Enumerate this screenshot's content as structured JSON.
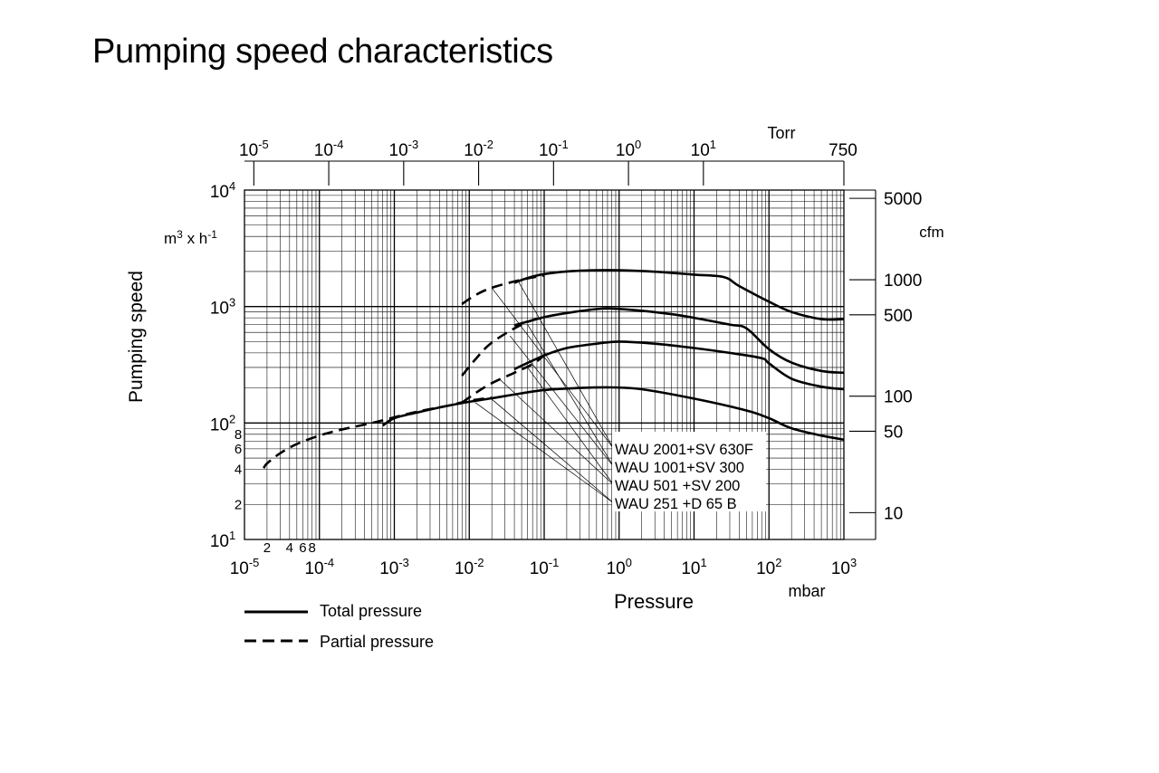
{
  "page": {
    "title": "Pumping speed characteristics"
  },
  "chart_data": {
    "type": "line",
    "title": "",
    "xlabel": "Pressure",
    "xunit": "mbar",
    "x_scale": "log",
    "xlim": [
      1e-05,
      1000
    ],
    "x_ticks": [
      "10-5",
      "10-4",
      "10-3",
      "10-2",
      "10-1",
      "100",
      "101",
      "102",
      "103"
    ],
    "x_minor_labels": [
      "2",
      "4",
      "6",
      "8"
    ],
    "ylabel": "Pumping speed",
    "yunit": "m3 x h-1",
    "y_scale": "log",
    "ylim": [
      10,
      10000
    ],
    "y_ticks": [
      "101",
      "102",
      "103",
      "104"
    ],
    "y_minor_labels": [
      "2",
      "4",
      "6",
      "8"
    ],
    "top_axis": {
      "label": "Torr",
      "ticks": [
        "10-5",
        "10-4",
        "10-3",
        "10-2",
        "10-1",
        "100",
        "101",
        "750"
      ]
    },
    "right_axis": {
      "label": "cfm",
      "ticks": [
        "5000",
        "1000",
        "500",
        "100",
        "50",
        "10"
      ]
    },
    "grid": true,
    "legend": {
      "position": "bottom-left",
      "entries": [
        {
          "label": "Total pressure",
          "style": "solid"
        },
        {
          "label": "Partial pressure",
          "style": "dashed"
        }
      ]
    },
    "annotations": [
      "WAU 2001+SV 630F",
      "WAU 1001+SV 300",
      "WAU 501  +SV 200",
      "WAU 251  +D 65 B"
    ],
    "series": [
      {
        "name": "WAU 2001+SV 630F",
        "style": "solid",
        "points": [
          [
            0.04,
            1600
          ],
          [
            0.06,
            1760
          ],
          [
            0.1,
            1900
          ],
          [
            0.2,
            2000
          ],
          [
            0.5,
            2050
          ],
          [
            1,
            2050
          ],
          [
            3,
            1990
          ],
          [
            10,
            1880
          ],
          [
            25,
            1790
          ],
          [
            40,
            1500
          ],
          [
            100,
            1100
          ],
          [
            200,
            900
          ],
          [
            500,
            780
          ],
          [
            1000,
            780
          ]
        ]
      },
      {
        "name": "WAU 2001+SV 630F",
        "style": "dashed",
        "points": [
          [
            0.008,
            1050
          ],
          [
            0.012,
            1250
          ],
          [
            0.02,
            1450
          ],
          [
            0.05,
            1700
          ],
          [
            0.1,
            1850
          ]
        ]
      },
      {
        "name": "WAU 1001+SV 300",
        "style": "solid",
        "points": [
          [
            0.04,
            690
          ],
          [
            0.1,
            810
          ],
          [
            0.2,
            880
          ],
          [
            0.5,
            950
          ],
          [
            0.8,
            960
          ],
          [
            2,
            920
          ],
          [
            5,
            860
          ],
          [
            10,
            800
          ],
          [
            30,
            700
          ],
          [
            50,
            650
          ],
          [
            100,
            430
          ],
          [
            200,
            330
          ],
          [
            500,
            280
          ],
          [
            1000,
            270
          ]
        ]
      },
      {
        "name": "WAU 1001+SV 300",
        "style": "dashed",
        "points": [
          [
            0.008,
            255
          ],
          [
            0.012,
            350
          ],
          [
            0.02,
            490
          ],
          [
            0.05,
            700
          ],
          [
            0.1,
            820
          ]
        ]
      },
      {
        "name": "WAU 501  +SV 200",
        "style": "solid",
        "points": [
          [
            0.04,
            290
          ],
          [
            0.1,
            380
          ],
          [
            0.2,
            440
          ],
          [
            0.5,
            480
          ],
          [
            1,
            500
          ],
          [
            3,
            480
          ],
          [
            10,
            440
          ],
          [
            30,
            400
          ],
          [
            80,
            360
          ],
          [
            100,
            325
          ],
          [
            200,
            240
          ],
          [
            500,
            205
          ],
          [
            1000,
            195
          ]
        ]
      },
      {
        "name": "WAU 501  +SV 200",
        "style": "dashed",
        "points": [
          [
            0.008,
            150
          ],
          [
            0.012,
            180
          ],
          [
            0.02,
            220
          ],
          [
            0.04,
            270
          ],
          [
            0.07,
            320
          ],
          [
            0.1,
            380
          ]
        ]
      },
      {
        "name": "WAU 251  +D 65 B",
        "style": "solid",
        "points": [
          [
            0.0007,
            95
          ],
          [
            0.001,
            110
          ],
          [
            0.002,
            123
          ],
          [
            0.005,
            140
          ],
          [
            0.01,
            152
          ],
          [
            0.02,
            163
          ],
          [
            0.05,
            180
          ],
          [
            0.1,
            192
          ],
          [
            0.3,
            200
          ],
          [
            0.8,
            202
          ],
          [
            2,
            195
          ],
          [
            10,
            162
          ],
          [
            50,
            128
          ],
          [
            100,
            110
          ],
          [
            200,
            90
          ],
          [
            500,
            78
          ],
          [
            1000,
            72
          ]
        ]
      },
      {
        "name": "WAU 251  +D 65 B",
        "style": "dashed",
        "points": [
          [
            1.8e-05,
            41
          ],
          [
            2e-05,
            45
          ],
          [
            3e-05,
            55
          ],
          [
            5e-05,
            66
          ],
          [
            0.0001,
            78
          ],
          [
            0.0002,
            88
          ],
          [
            0.0005,
            100
          ],
          [
            0.001,
            112
          ],
          [
            0.002,
            125
          ],
          [
            0.005,
            140
          ],
          [
            0.01,
            155
          ],
          [
            0.02,
            165
          ]
        ]
      }
    ]
  }
}
